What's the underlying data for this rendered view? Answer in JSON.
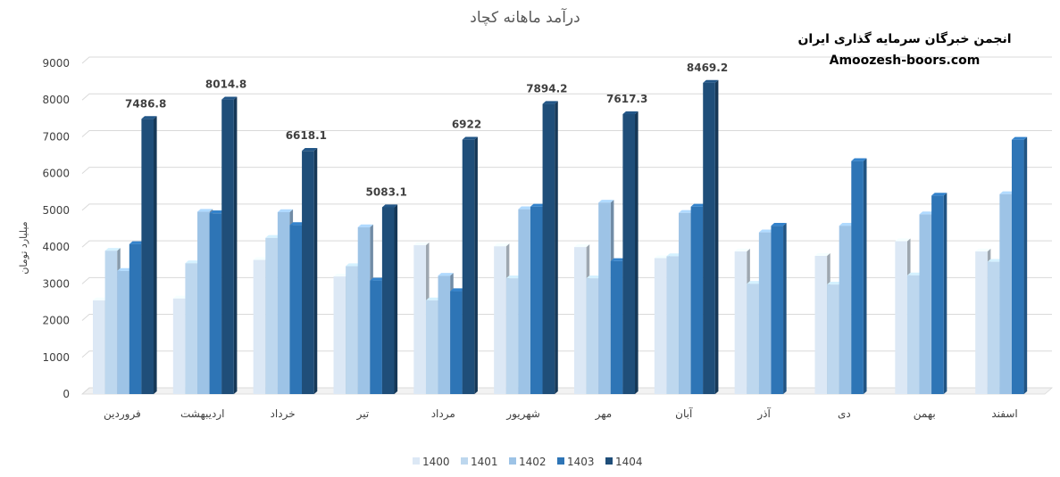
{
  "chart_data": {
    "type": "bar",
    "title": "درآمد ماهانه کچاد",
    "ylabel": "میلیارد تومان",
    "xlabel": "",
    "ylim": [
      0,
      9000
    ],
    "yticks": [
      0,
      1000,
      2000,
      3000,
      4000,
      5000,
      6000,
      7000,
      8000,
      9000
    ],
    "grid": true,
    "legend_position": "bottom",
    "categories": [
      "فروردین",
      "اردیبهشت",
      "خرداد",
      "تیر",
      "مرداد",
      "شهریور",
      "مهر",
      "آبان",
      "آذر",
      "دی",
      "بهمن",
      "اسفند"
    ],
    "series": [
      {
        "name": "1400",
        "color": "#dce8f5",
        "values": [
          2550,
          2600,
          3650,
          3200,
          4050,
          4020,
          4000,
          3700,
          3880,
          3760,
          4160,
          3880
        ]
      },
      {
        "name": "1401",
        "color": "#bdd7ee",
        "values": [
          3900,
          3560,
          4250,
          3480,
          2550,
          3150,
          3150,
          3750,
          3000,
          2980,
          3230,
          3600
        ]
      },
      {
        "name": "1402",
        "color": "#9dc3e6",
        "values": [
          3350,
          4960,
          4950,
          4540,
          3220,
          5030,
          5210,
          4930,
          4400,
          4580,
          4890,
          5440
        ]
      },
      {
        "name": "1403",
        "color": "#2e75b6",
        "values": [
          4080,
          4920,
          4600,
          3090,
          2800,
          5100,
          3620,
          5100,
          4580,
          6340,
          5400,
          6920
        ]
      },
      {
        "name": "1404",
        "color": "#1f4e79",
        "values": [
          7486.8,
          8014.8,
          6618.1,
          5083.1,
          6922,
          7894.2,
          7617.3,
          8469.2,
          null,
          null,
          null,
          null
        ]
      }
    ],
    "data_labels": {
      "series": "1404",
      "values": [
        "7486.8",
        "8014.8",
        "6618.1",
        "5083.1",
        "6922",
        "7894.2",
        "7617.3",
        "8469.2"
      ]
    }
  },
  "watermark": {
    "line1": "انجمن خبرگان سرمایه گذاری ایران",
    "line2": "Amoozesh-boors.com"
  }
}
